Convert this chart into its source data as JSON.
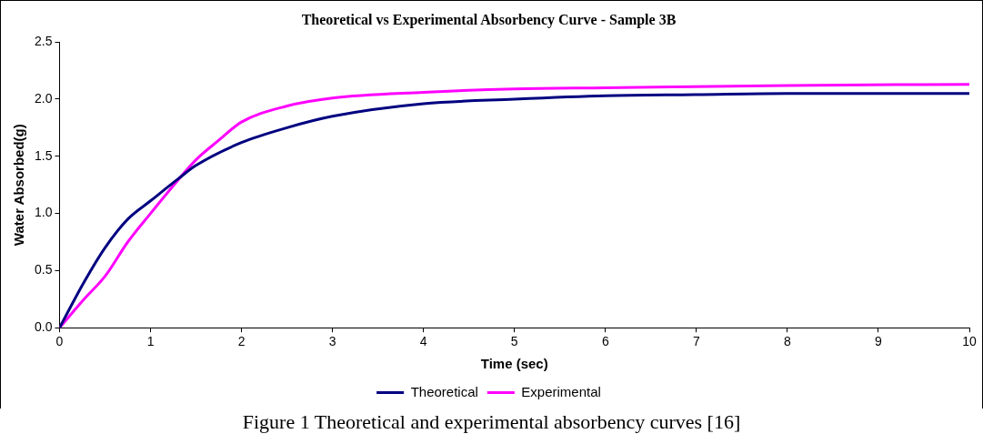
{
  "chart_data": {
    "type": "line",
    "title": "Theoretical vs Experimental Absorbency Curve - Sample 3B",
    "xlabel": "Time (sec)",
    "ylabel": "Water Absorbed(g)",
    "series": [
      {
        "name": "Theoretical",
        "color": "#000080",
        "x": [
          0,
          0.27,
          0.5,
          0.75,
          1,
          1.3,
          1.5,
          2,
          2.5,
          3,
          4,
          5,
          6,
          7,
          8,
          10
        ],
        "values": [
          0,
          0.4,
          0.7,
          0.95,
          1.11,
          1.3,
          1.42,
          1.62,
          1.75,
          1.85,
          1.96,
          2.0,
          2.03,
          2.04,
          2.05,
          2.05
        ]
      },
      {
        "name": "Experimental",
        "color": "#ff00ff",
        "x": [
          0,
          0.27,
          0.5,
          0.75,
          1,
          1.3,
          1.5,
          1.75,
          2,
          2.5,
          3,
          4,
          5,
          6,
          8,
          10
        ],
        "values": [
          0,
          0.25,
          0.45,
          0.75,
          1.0,
          1.29,
          1.47,
          1.64,
          1.8,
          1.94,
          2.01,
          2.06,
          2.09,
          2.1,
          2.12,
          2.13
        ]
      }
    ],
    "xlim": [
      0,
      10
    ],
    "xticks": [
      0,
      1,
      2,
      3,
      4,
      5,
      6,
      7,
      8,
      9,
      10
    ],
    "ylim": [
      0,
      2.5
    ],
    "yticks": [
      {
        "value": 0,
        "label": "0.0"
      },
      {
        "value": 0.5,
        "label": "0.5"
      },
      {
        "value": 1,
        "label": "1.0"
      },
      {
        "value": 1.5,
        "label": "1.5"
      },
      {
        "value": 2,
        "label": "2.0"
      },
      {
        "value": 2.5,
        "label": "2.5"
      }
    ],
    "grid": false,
    "legend": "bottom",
    "marker": "none",
    "line_style": "solid",
    "annotations": [
      "Figure 1 Theoretical and experimental absorbency curves [16]"
    ]
  }
}
